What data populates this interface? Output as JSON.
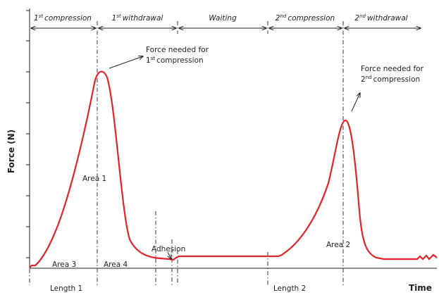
{
  "axes": {
    "y_label": "Force (N)",
    "x_label": "Time"
  },
  "phases": [
    {
      "number": "1",
      "suffix": "st",
      "name": "compression"
    },
    {
      "number": "1",
      "suffix": "st",
      "name": "withdrawal"
    },
    {
      "name": "Waiting"
    },
    {
      "number": "2",
      "suffix": "nd",
      "name": "compression"
    },
    {
      "number": "2",
      "suffix": "nd",
      "name": "withdrawal"
    }
  ],
  "annotations": {
    "peak1": {
      "line1": "Force needed for",
      "number": "1",
      "suffix": "st",
      "name": "compression"
    },
    "peak2": {
      "line1": "Force needed for",
      "number": "2",
      "suffix": "nd",
      "name": "compression"
    },
    "area1": "Area 1",
    "area2": "Area 2",
    "area3": "Area 3",
    "area4": "Area 4",
    "adhesion": "Adhesion",
    "length1": "Length 1",
    "length2": "Length 2"
  }
}
